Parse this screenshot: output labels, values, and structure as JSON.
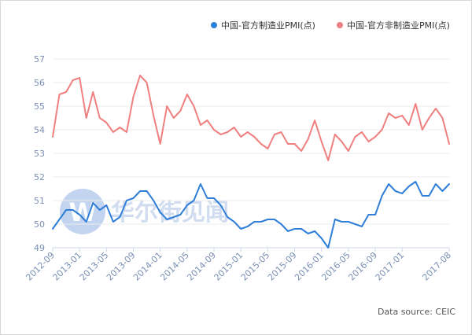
{
  "source_note": "Data source: CEIC",
  "watermark": {
    "logo_letter": "W",
    "text": "华尔街见闻",
    "color": "#b8cdee"
  },
  "chart_data": {
    "type": "line",
    "title": "",
    "xlabel": "",
    "ylabel": "",
    "ylim": [
      49,
      57
    ],
    "yticks": [
      49,
      50,
      51,
      52,
      53,
      54,
      55,
      56,
      57
    ],
    "grid": "horizontal",
    "legend_position": "top-right",
    "x": [
      "2012-09",
      "2012-10",
      "2012-11",
      "2012-12",
      "2013-01",
      "2013-02",
      "2013-03",
      "2013-04",
      "2013-05",
      "2013-06",
      "2013-07",
      "2013-08",
      "2013-09",
      "2013-10",
      "2013-11",
      "2013-12",
      "2014-01",
      "2014-02",
      "2014-03",
      "2014-04",
      "2014-05",
      "2014-06",
      "2014-07",
      "2014-08",
      "2014-09",
      "2014-10",
      "2014-11",
      "2014-12",
      "2015-01",
      "2015-02",
      "2015-03",
      "2015-04",
      "2015-05",
      "2015-06",
      "2015-07",
      "2015-08",
      "2015-09",
      "2015-10",
      "2015-11",
      "2015-12",
      "2016-01",
      "2016-02",
      "2016-03",
      "2016-04",
      "2016-05",
      "2016-06",
      "2016-07",
      "2016-08",
      "2016-09",
      "2016-10",
      "2016-11",
      "2016-12",
      "2017-01",
      "2017-02",
      "2017-03",
      "2017-04",
      "2017-05",
      "2017-06",
      "2017-07",
      "2017-08"
    ],
    "xtick_labels": [
      "2012-09",
      "2013-01",
      "2013-05",
      "2013-09",
      "2014-01",
      "2014-05",
      "2014-09",
      "2015-01",
      "2015-05",
      "2015-09",
      "2016-01",
      "2016-05",
      "2016-09",
      "2017-01",
      "2017-08"
    ],
    "series": [
      {
        "name": "中国-官方制造业PMI(点)",
        "color": "#2f7ed8",
        "values": [
          49.8,
          50.2,
          50.6,
          50.6,
          50.4,
          50.1,
          50.9,
          50.6,
          50.8,
          50.1,
          50.3,
          51.0,
          51.1,
          51.4,
          51.4,
          51.0,
          50.5,
          50.2,
          50.3,
          50.4,
          50.8,
          51.0,
          51.7,
          51.1,
          51.1,
          50.8,
          50.3,
          50.1,
          49.8,
          49.9,
          50.1,
          50.1,
          50.2,
          50.2,
          50.0,
          49.7,
          49.8,
          49.8,
          49.6,
          49.7,
          49.4,
          49.0,
          50.2,
          50.1,
          50.1,
          50.0,
          49.9,
          50.4,
          50.4,
          51.2,
          51.7,
          51.4,
          51.3,
          51.6,
          51.8,
          51.2,
          51.2,
          51.7,
          51.4,
          51.7
        ]
      },
      {
        "name": "中国-官方非制造业PMI(点)",
        "color": "#f08080",
        "values": [
          53.7,
          55.5,
          55.6,
          56.1,
          56.2,
          54.5,
          55.6,
          54.5,
          54.3,
          53.9,
          54.1,
          53.9,
          55.4,
          56.3,
          56.0,
          54.6,
          53.4,
          55.0,
          54.5,
          54.8,
          55.5,
          55.0,
          54.2,
          54.4,
          54.0,
          53.8,
          53.9,
          54.1,
          53.7,
          53.9,
          53.7,
          53.4,
          53.2,
          53.8,
          53.9,
          53.4,
          53.4,
          53.1,
          53.6,
          54.4,
          53.5,
          52.7,
          53.8,
          53.5,
          53.1,
          53.7,
          53.9,
          53.5,
          53.7,
          54.0,
          54.7,
          54.5,
          54.6,
          54.2,
          55.1,
          54.0,
          54.5,
          54.9,
          54.5,
          53.4
        ]
      }
    ]
  }
}
